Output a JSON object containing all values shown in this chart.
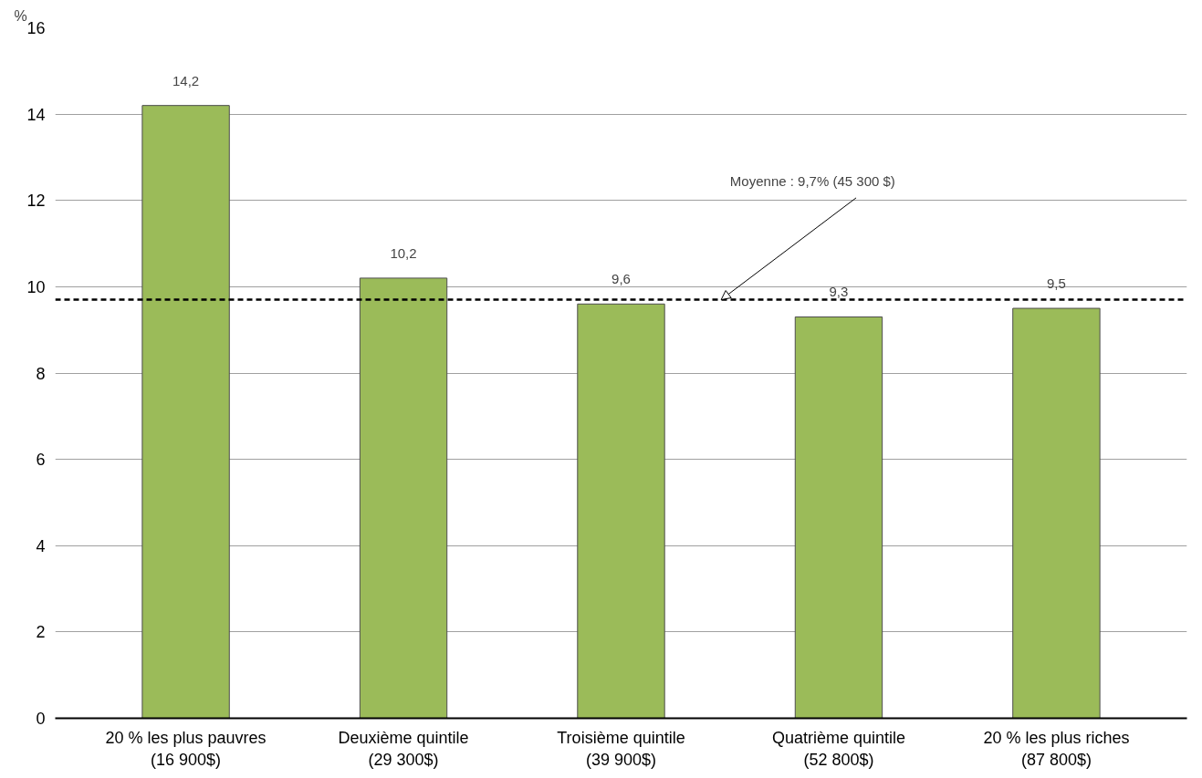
{
  "chart_data": {
    "type": "bar",
    "ylabel": "%",
    "categories": [
      "20 % les plus pauvres\n(16 900$)",
      "Deuxième quintile\n(29 300$)",
      "Troisième quintile\n(39 900$)",
      "Quatrième quintile\n(52 800$)",
      "20 % les plus riches\n(87 800$)"
    ],
    "values": [
      14.2,
      10.2,
      9.6,
      9.3,
      9.5
    ],
    "value_labels": [
      "14,2",
      "10,2",
      "9,6",
      "9,3",
      "9,5"
    ],
    "color": "#9bbb59",
    "ylim": [
      0,
      16
    ],
    "yticks": [
      0,
      2,
      4,
      6,
      8,
      10,
      12,
      14,
      16
    ],
    "grid": "y",
    "ref_lines": [
      {
        "axis": "y",
        "value": 9.7,
        "label": "Moyenne : 9,7% (45 300 $)",
        "color": "#000000",
        "line_style": "dashed"
      }
    ]
  }
}
